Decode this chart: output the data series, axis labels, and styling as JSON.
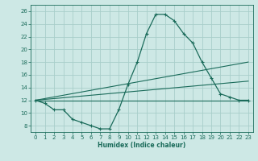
{
  "title": "",
  "xlabel": "Humidex (Indice chaleur)",
  "ylabel": "",
  "background_color": "#cde8e5",
  "grid_color": "#a8ceca",
  "line_color": "#1a6b5a",
  "xlim": [
    -0.5,
    23.5
  ],
  "ylim": [
    7,
    27
  ],
  "yticks": [
    8,
    10,
    12,
    14,
    16,
    18,
    20,
    22,
    24,
    26
  ],
  "xticks": [
    0,
    1,
    2,
    3,
    4,
    5,
    6,
    7,
    8,
    9,
    10,
    11,
    12,
    13,
    14,
    15,
    16,
    17,
    18,
    19,
    20,
    21,
    22,
    23
  ],
  "series": {
    "main": {
      "x": [
        0,
        1,
        2,
        3,
        4,
        5,
        6,
        7,
        8,
        9,
        10,
        11,
        12,
        13,
        14,
        15,
        16,
        17,
        18,
        19,
        20,
        21,
        22,
        23
      ],
      "y": [
        12,
        11.5,
        10.5,
        10.5,
        9.0,
        8.5,
        8.0,
        7.5,
        7.5,
        10.5,
        14.5,
        18.0,
        22.5,
        25.5,
        25.5,
        24.5,
        22.5,
        21.0,
        18.0,
        15.5,
        13.0,
        12.5,
        12.0,
        12.0
      ]
    },
    "upper_line": {
      "x": [
        0,
        23
      ],
      "y": [
        12,
        18.0
      ]
    },
    "middle_line": {
      "x": [
        0,
        23
      ],
      "y": [
        12,
        15.0
      ]
    },
    "lower_line": {
      "x": [
        0,
        23
      ],
      "y": [
        12,
        12.0
      ]
    }
  }
}
